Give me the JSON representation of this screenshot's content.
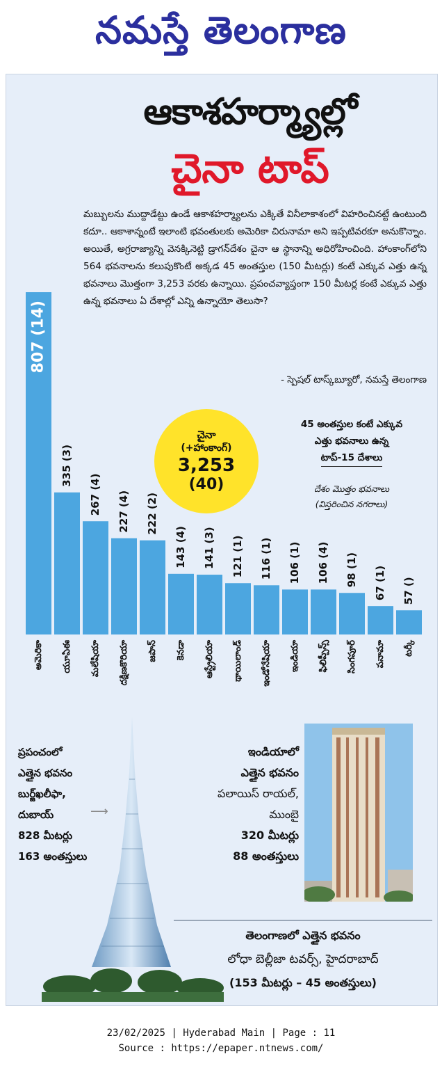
{
  "masthead": "నమస్తే తెలంగాణ",
  "headline": {
    "line1": "ఆకాశహర్మ్యాల్లో",
    "line2": "చైనా టాప్"
  },
  "intro": "మబ్బులను ముద్దాడేట్టు ఉండే ఆకాశహర్మ్యాలను ఎక్కితే వినీలాకాశంలో విహరించినట్టే ఉంటుంది కదూ.. ఆకాశాన్నంటే ఇలాంటి భవంతులకు అమెరికా చిరునామా అని ఇప్పటివరకూ అనుకొన్నాం. అయితే, అగ్రరాజ్యాన్ని వెనక్కినెట్టి డ్రాగన్‌దేశం చైనా ఆ స్థానాన్ని అధిరోహించింది. హాంకాంగ్‌లోని 564 భవనాలను కలుపుకొంటే అక్కడ 45 అంతస్తుల (150 మీటర్లు) కంటే ఎక్కువ ఎత్తు ఉన్న భవనాలు మొత్తంగా 3,253 వరకు ఉన్నాయి. ప్రపంచవ్యాప్తంగా 150 మీటర్ల కంటే ఎక్కువ ఎత్తు ఉన్న భవనాలు ఏ దేశాల్లో ఎన్ని ఉన్నాయో తెలుసా?",
  "byline": "- స్పెషల్ టాస్క్‌బ్యూరో, నమస్తే తెలంగాణ",
  "badge": {
    "country": "చైనా",
    "sub": "(+హాంకాంగ్)",
    "count": "3,253",
    "cities": "(40)"
  },
  "legend": {
    "line1": "45 అంతస్తుల కంటే ఎక్కువ",
    "line2": "ఎత్తు భవనాలు ఉన్న",
    "line3": "టాప్-15 దేశాలు",
    "key1": "దేశం మొత్తం భవనాలు",
    "key2": "(విస్తరించిన నగరాలు)"
  },
  "chart_data": {
    "type": "bar",
    "title": "45 అంతస్తుల కంటే ఎక్కువ ఎత్తు భవనాలు ఉన్న టాప్-15 దేశాలు",
    "categories": [
      "అమెరికా",
      "యూఏఈ",
      "మలేషియా",
      "దక్షిణకొరియా",
      "జపాన్",
      "కెనడా",
      "ఆస్ట్రేలియా",
      "థాయిలాండ్",
      "ఇండోనేషియా",
      "ఇండియా",
      "ఫిలిప్పీన్స్",
      "సింగపూర్",
      "పనామా",
      "టర్కీ"
    ],
    "values": [
      807,
      335,
      267,
      227,
      222,
      143,
      141,
      121,
      116,
      106,
      106,
      98,
      67,
      57
    ],
    "labels": [
      "807 (14)",
      "335 (3)",
      "267 (4)",
      "227 (4)",
      "222 (2)",
      "143 (4)",
      "141 (3)",
      "121 (1)",
      "116 (1)",
      "106 (1)",
      "106 (4)",
      "98 (1)",
      "67 (1)",
      "57 ()"
    ],
    "color": "#4ca6e0",
    "ylim": [
      0,
      807
    ]
  },
  "world": {
    "line1": "ప్రపంచంలో",
    "line2": "ఎత్తైన భవనం",
    "line3": "బుర్జ్‌ఖలీఫా,",
    "line4": "దుబాయ్",
    "line5": "828 మీటర్లు",
    "line6": "163 అంతస్తులు"
  },
  "india": {
    "line1": "ఇండియాలో",
    "line2": "ఎత్తైన భవనం",
    "line3": "పలాయిస్ రాయల్,",
    "line4": "ముంబై",
    "line5": "320 మీటర్లు",
    "line6": "88 అంతస్తులు"
  },
  "telangana": {
    "line1": "తెలంగాణలో ఎత్తైన భవనం",
    "line2": "లోధా బెల్లీజా టవర్స్, హైదరాబాద్",
    "line3": "(153 మీటర్లు – 45 అంతస్తులు)"
  },
  "footer": {
    "line1": "23/02/2025 | Hyderabad Main | Page : 11",
    "line2": "Source : https://epaper.ntnews.com/"
  }
}
